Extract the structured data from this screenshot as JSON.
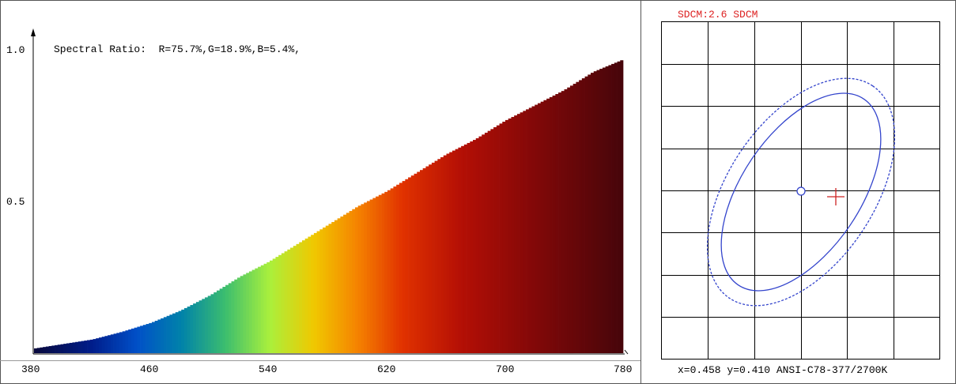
{
  "chart_data": [
    {
      "type": "area",
      "title": "",
      "annotation": "Spectral Ratio:  R=75.7%,G=18.9%,B=5.4%,",
      "xlabel": "",
      "ylabel": "",
      "xlim": [
        380,
        780
      ],
      "ylim": [
        0,
        1.0
      ],
      "x_ticks": [
        "380",
        "460",
        "540",
        "620",
        "700",
        "780"
      ],
      "y_ticks": [
        "1.0",
        "0.5"
      ],
      "grid": false,
      "fill": "spectral-colors",
      "x": [
        380,
        400,
        420,
        440,
        460,
        480,
        500,
        520,
        540,
        560,
        580,
        600,
        620,
        640,
        660,
        680,
        700,
        720,
        740,
        760,
        780
      ],
      "values": [
        0.015,
        0.03,
        0.045,
        0.07,
        0.1,
        0.14,
        0.19,
        0.25,
        0.3,
        0.36,
        0.42,
        0.48,
        0.53,
        0.59,
        0.65,
        0.7,
        0.76,
        0.81,
        0.86,
        0.92,
        0.96
      ]
    },
    {
      "type": "scatter",
      "title": "SDCM:2.6 SDCM",
      "grid": true,
      "grid_columns": 6,
      "grid_rows": 8,
      "caption": "x=0.458 y=0.410 ANSI-C78-377/2700K",
      "series": [
        {
          "marker": "circle",
          "color": "#3344cc"
        },
        {
          "marker": "cross",
          "color": "#cc2222"
        }
      ],
      "ellipses": [
        {
          "style": "solid",
          "color": "#3344cc"
        },
        {
          "style": "dashed",
          "color": "#3344cc"
        }
      ]
    }
  ]
}
